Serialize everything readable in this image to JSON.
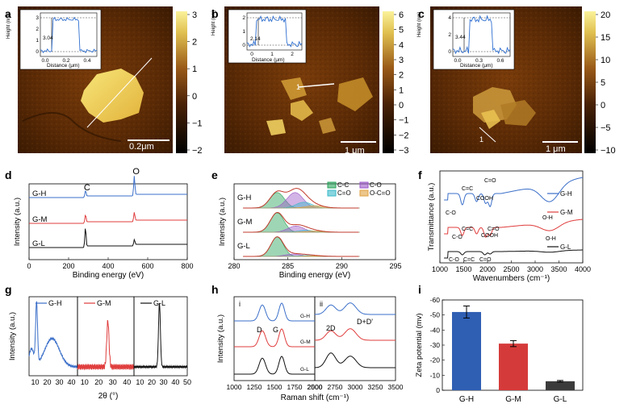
{
  "colors": {
    "gh": "#3b6fc9",
    "gm": "#e03c3c",
    "gl": "#111111",
    "afm_dark": "#2a1200",
    "afm_mid": "#8a4a10",
    "afm_light": "#f2e070"
  },
  "panels": {
    "a": {
      "letter": "a",
      "scale_label": "0.2μm",
      "colorbar_ticks": [
        "3",
        "2",
        "1",
        "0",
        "−1",
        "−2"
      ],
      "inset": {
        "ylabel": "Height (nm)",
        "xlabel": "Distance (μm)",
        "xticks": [
          "0.0",
          "0.2",
          "0.4"
        ],
        "yticks": [
          "0",
          "1",
          "2",
          "3"
        ],
        "annot": "3.04"
      }
    },
    "b": {
      "letter": "b",
      "scale_label": "1 μm",
      "line_label": "1",
      "colorbar_ticks": [
        "6",
        "5",
        "4",
        "3",
        "2",
        "1",
        "0",
        "−1",
        "−2",
        "−3"
      ],
      "inset": {
        "ylabel": "Height (nm)",
        "xlabel": "Distance (μm)",
        "xticks": [
          "0",
          "1",
          "2"
        ],
        "yticks": [
          "0",
          "1",
          "2"
        ],
        "annot": "2.14"
      }
    },
    "c": {
      "letter": "c",
      "scale_label": "1 μm",
      "line_label": "1",
      "colorbar_ticks": [
        "20",
        "15",
        "10",
        "5",
        "0",
        "−5",
        "−10"
      ],
      "inset": {
        "ylabel": "Height (nm)",
        "xlabel": "Distance (μm)",
        "xticks": [
          "0.0",
          "0.3",
          "0.6"
        ],
        "yticks": [
          "0",
          "2",
          "4"
        ],
        "annot": "3.44"
      }
    },
    "d": {
      "letter": "d"
    },
    "e": {
      "letter": "e"
    },
    "f": {
      "letter": "f"
    },
    "g": {
      "letter": "g"
    },
    "h": {
      "letter": "h"
    },
    "i": {
      "letter": "i"
    }
  },
  "chart_data": [
    {
      "panel": "d",
      "type": "line",
      "xlabel": "Binding energy (eV)",
      "ylabel": "Intensity (a.u.)",
      "xlim": [
        0,
        800
      ],
      "xticks": [
        "0",
        "200",
        "400",
        "600",
        "800"
      ],
      "peak_labels": [
        {
          "text": "C",
          "x": 285
        },
        {
          "text": "O",
          "x": 532
        }
      ],
      "series": [
        {
          "name": "G-H",
          "peaks": [
            {
              "x": 285,
              "h": 0.32
            },
            {
              "x": 532,
              "h": 0.95
            }
          ]
        },
        {
          "name": "G-M",
          "peaks": [
            {
              "x": 285,
              "h": 0.4
            },
            {
              "x": 532,
              "h": 0.45
            }
          ]
        },
        {
          "name": "G-L",
          "peaks": [
            {
              "x": 285,
              "h": 0.95
            },
            {
              "x": 532,
              "h": 0.3
            }
          ]
        }
      ]
    },
    {
      "panel": "e",
      "type": "line",
      "xlabel": "Binding energy (eV)",
      "ylabel": "Intensity (a.u.)",
      "xlim": [
        280,
        298
      ],
      "xticks": [
        "280",
        "285",
        "290",
        "295"
      ],
      "legend": [
        {
          "label": "C-C",
          "color": "#27a35a"
        },
        {
          "label": "C-O",
          "color": "#9b59c8"
        },
        {
          "label": "C=O",
          "color": "#39b9c9"
        },
        {
          "label": "O-C=O",
          "color": "#e0a040"
        }
      ],
      "series": [
        {
          "name": "G-H",
          "components": [
            {
              "x": 284.8,
              "h": 0.8,
              "w": 0.8
            },
            {
              "x": 286.8,
              "h": 0.8,
              "w": 0.9
            },
            {
              "x": 287.8,
              "h": 0.3,
              "w": 0.9
            },
            {
              "x": 289.0,
              "h": 0.12,
              "w": 1.0
            }
          ]
        },
        {
          "name": "G-M",
          "components": [
            {
              "x": 284.8,
              "h": 1.0,
              "w": 0.75
            },
            {
              "x": 286.9,
              "h": 0.32,
              "w": 0.9
            },
            {
              "x": 288.0,
              "h": 0.1,
              "w": 0.9
            },
            {
              "x": 289.0,
              "h": 0.06,
              "w": 1.0
            }
          ]
        },
        {
          "name": "G-L",
          "components": [
            {
              "x": 284.8,
              "h": 1.0,
              "w": 0.7
            },
            {
              "x": 286.6,
              "h": 0.12,
              "w": 0.9
            },
            {
              "x": 288.0,
              "h": 0.05,
              "w": 0.9
            },
            {
              "x": 289.0,
              "h": 0.03,
              "w": 1.0
            }
          ]
        }
      ]
    },
    {
      "panel": "f",
      "type": "line",
      "xlabel": "Wavenumbers (cm⁻¹)",
      "ylabel": "Transmittance (a.u.)",
      "xlim": [
        500,
        4000
      ],
      "xticks": [
        "1000",
        "1500",
        "2000",
        "2500",
        "3000",
        "3500",
        "4000"
      ],
      "series": [
        {
          "name": "G-H"
        },
        {
          "name": "G-M"
        },
        {
          "name": "G-L"
        }
      ],
      "annotations": [
        "C-O",
        "C=C",
        "COOH",
        "C=O",
        "O-H",
        "C-O",
        "C=C",
        "COOH",
        "C=O",
        "O-H",
        "C-O",
        "C=C",
        "C=O"
      ]
    },
    {
      "panel": "g",
      "type": "line",
      "xlabel": "2θ (°)",
      "ylabel": "Intensity (a.u.)",
      "series": [
        {
          "name": "G-H",
          "xticks": [
            "10",
            "20",
            "30",
            "40"
          ],
          "peaks": [
            {
              "x": 11.2,
              "h": 0.85
            },
            {
              "x": 24,
              "h": 0.4
            }
          ]
        },
        {
          "name": "G-M",
          "xticks": [
            "10",
            "20",
            "30",
            "40"
          ],
          "peaks": [
            {
              "x": 26.5,
              "h": 0.65
            }
          ]
        },
        {
          "name": "G-L",
          "xticks": [
            "10",
            "20",
            "30",
            "40",
            "50"
          ],
          "peaks": [
            {
              "x": 26.5,
              "h": 0.9
            }
          ]
        }
      ]
    },
    {
      "panel": "h",
      "type": "line",
      "xlabel": "Raman shift (cm⁻¹)",
      "ylabel": "Intensity (a.u.)",
      "xticks": [
        "1000",
        "1250",
        "1500",
        "1750",
        "2000",
        "2500",
        "2750",
        "3000",
        "3250",
        "3500"
      ],
      "sub_labels": [
        "i",
        "ii"
      ],
      "peak_labels": [
        "D",
        "G",
        "2D",
        "D+D'"
      ],
      "series": [
        {
          "name": "G-H"
        },
        {
          "name": "G-M"
        },
        {
          "name": "G-L"
        }
      ]
    },
    {
      "panel": "i",
      "type": "bar",
      "ylabel": "Zeta potential (mv)",
      "categories": [
        "G-H",
        "G-M",
        "G-L"
      ],
      "values": [
        -52,
        -31,
        -6
      ],
      "errors": [
        4,
        2,
        0.5
      ],
      "ylim": [
        0,
        -60
      ],
      "yticks": [
        "0",
        "-10",
        "-20",
        "-30",
        "-40",
        "-50",
        "-60"
      ],
      "bar_colors": [
        "#2f5fb3",
        "#d53a3a",
        "#3b3b3b"
      ]
    }
  ]
}
